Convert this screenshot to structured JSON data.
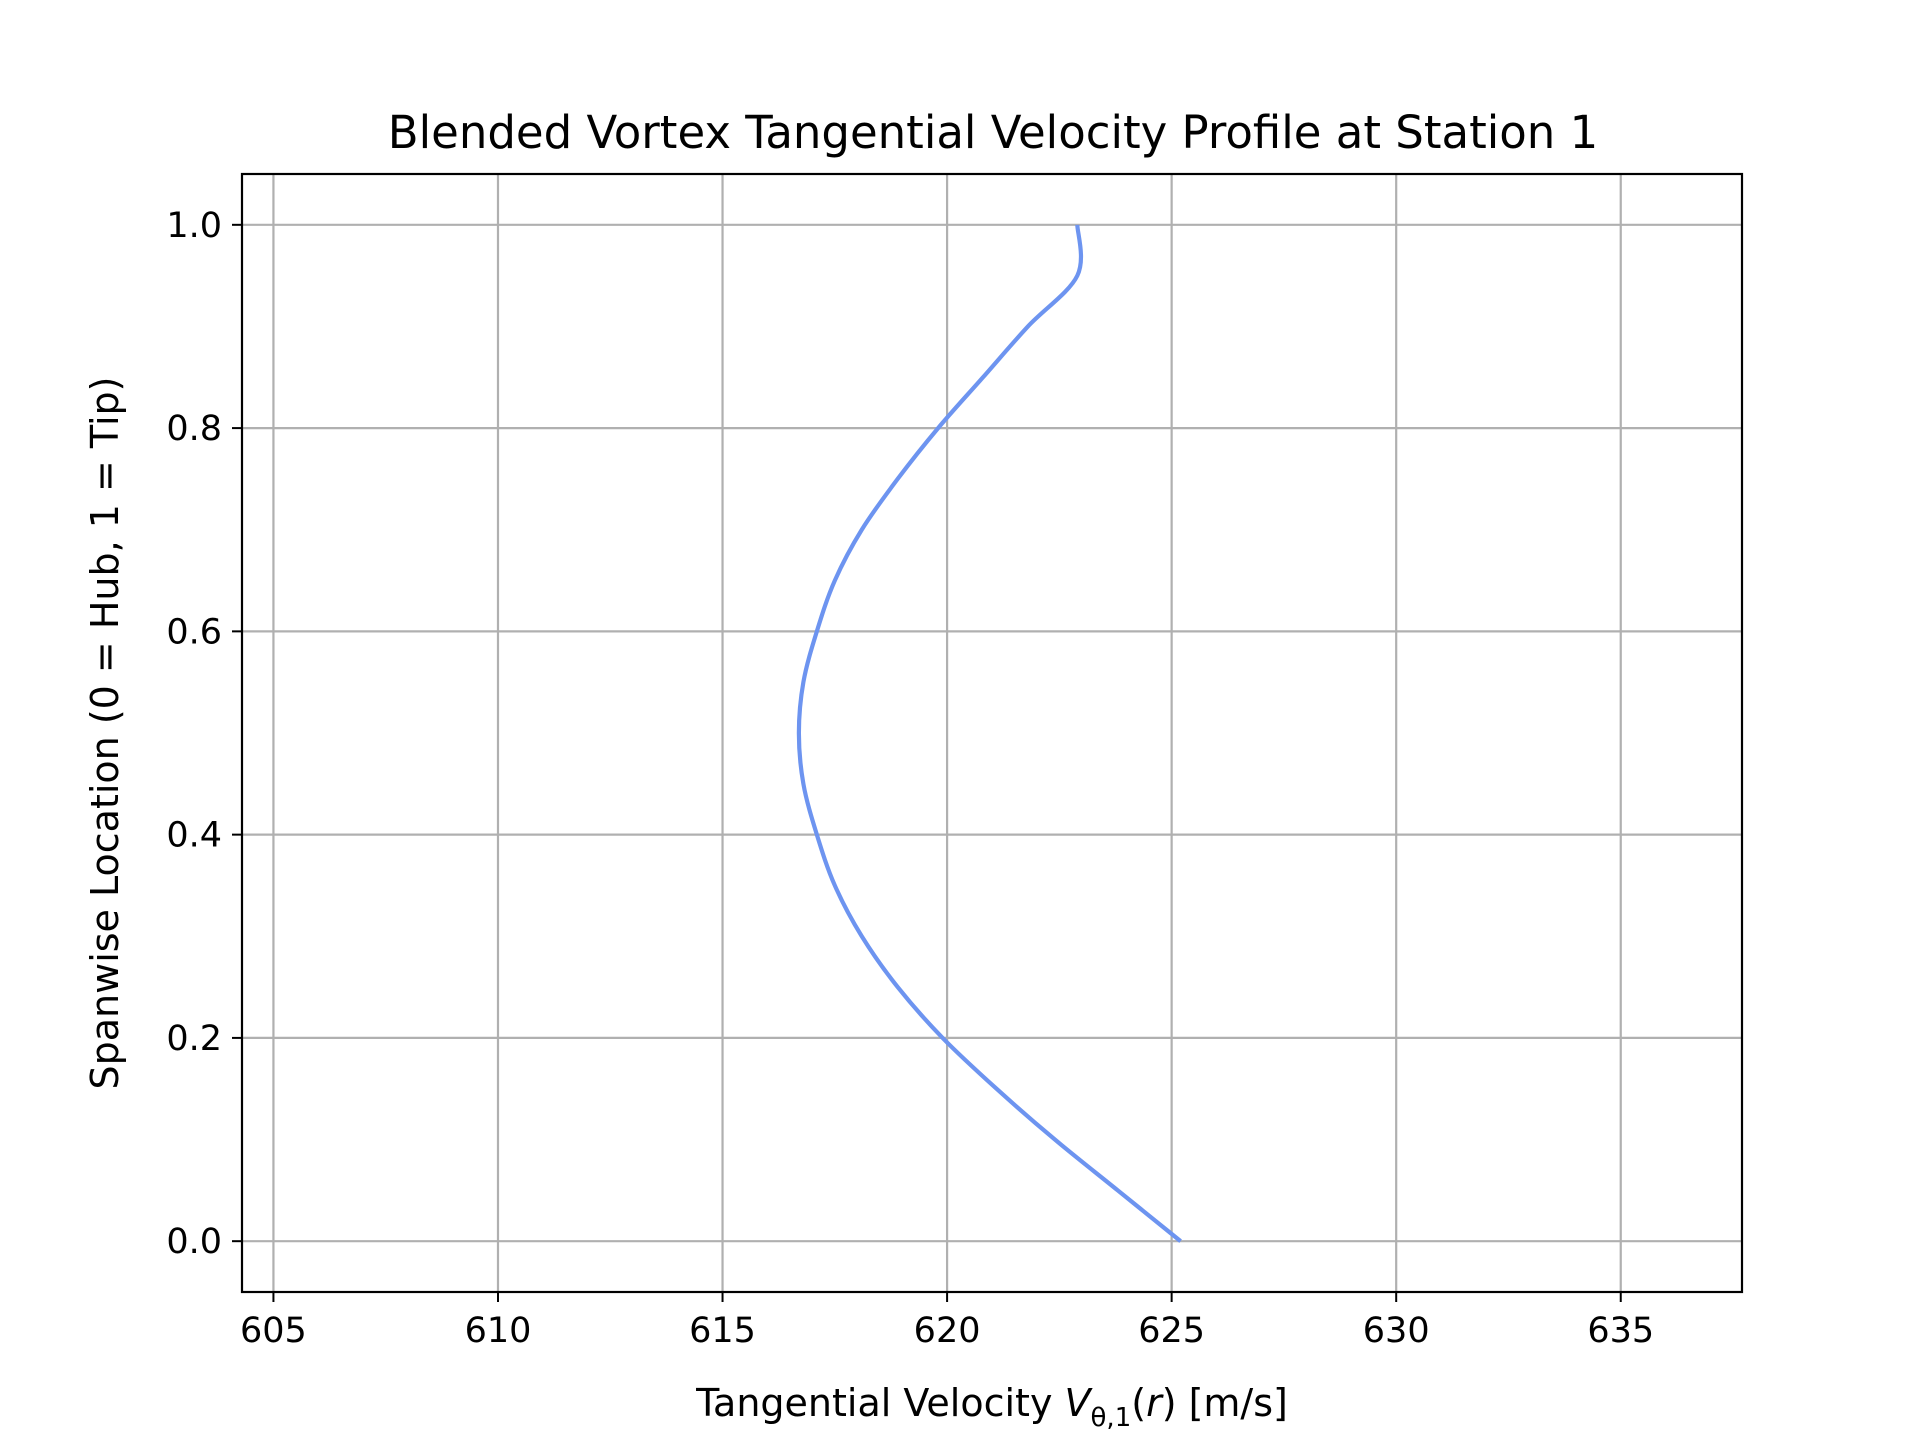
{
  "chart_data": {
    "type": "line",
    "title": "Blended Vortex Tangential Velocity Profile at Station 1",
    "xlabel": {
      "prefix": "Tangential Velocity ",
      "symbol": "V",
      "subscript": "θ,1",
      "argument_open": "(",
      "argument": "r",
      "argument_close": ")",
      "suffix": " [m/s]"
    },
    "ylabel": "Spanwise Location (0 = Hub, 1 = Tip)",
    "xlim": [
      604.3,
      637.7
    ],
    "ylim": [
      -0.05,
      1.05
    ],
    "xticks": [
      605,
      610,
      615,
      620,
      625,
      630,
      635
    ],
    "xtick_labels": [
      "605",
      "610",
      "615",
      "620",
      "625",
      "630",
      "635"
    ],
    "yticks": [
      0.0,
      0.2,
      0.4,
      0.6,
      0.8,
      1.0
    ],
    "ytick_labels": [
      "0.0",
      "0.2",
      "0.4",
      "0.6",
      "0.8",
      "1.0"
    ],
    "grid": true,
    "series": [
      {
        "color": "#6d94f0",
        "points": [
          {
            "x": 625.2,
            "y": 0.0
          },
          {
            "x": 623.8,
            "y": 0.05
          },
          {
            "x": 622.4,
            "y": 0.1
          },
          {
            "x": 621.1,
            "y": 0.15
          },
          {
            "x": 619.9,
            "y": 0.2
          },
          {
            "x": 618.9,
            "y": 0.25
          },
          {
            "x": 618.1,
            "y": 0.3
          },
          {
            "x": 617.5,
            "y": 0.35
          },
          {
            "x": 617.1,
            "y": 0.4
          },
          {
            "x": 616.8,
            "y": 0.45
          },
          {
            "x": 616.7,
            "y": 0.5
          },
          {
            "x": 616.8,
            "y": 0.55
          },
          {
            "x": 617.1,
            "y": 0.6
          },
          {
            "x": 617.5,
            "y": 0.65
          },
          {
            "x": 618.1,
            "y": 0.7
          },
          {
            "x": 618.9,
            "y": 0.75
          },
          {
            "x": 619.8,
            "y": 0.8
          },
          {
            "x": 620.8,
            "y": 0.85
          },
          {
            "x": 621.8,
            "y": 0.9
          },
          {
            "x": 622.9,
            "y": 0.95
          },
          {
            "x": 622.9,
            "y": 1.0
          }
        ]
      }
    ]
  }
}
